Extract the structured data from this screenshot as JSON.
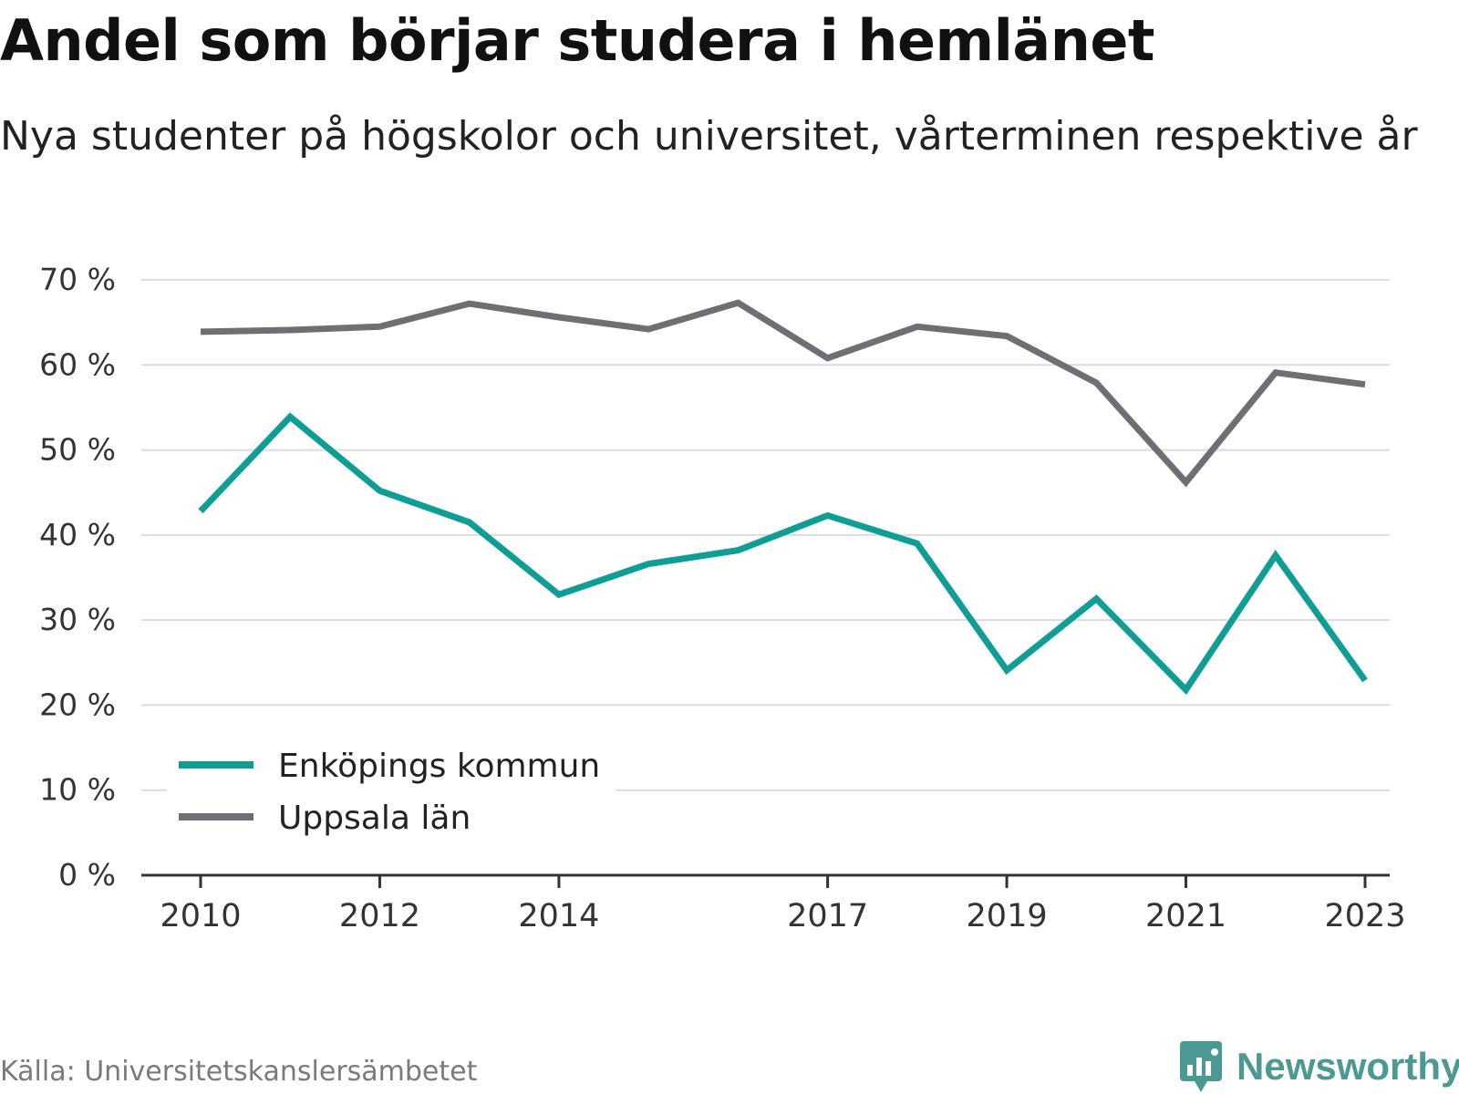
{
  "header": {
    "title": "Andel som börjar studera i hemlänet",
    "subtitle": "Nya studenter på högskolor och universitet, vårterminen respektive år"
  },
  "chart_data": {
    "type": "line",
    "title": "Andel som börjar studera i hemlänet",
    "subtitle": "Nya studenter på högskolor och universitet, vårterminen respektive år",
    "x": [
      2010,
      2011,
      2012,
      2013,
      2014,
      2015,
      2016,
      2017,
      2018,
      2019,
      2020,
      2021,
      2022,
      2023
    ],
    "x_tick_labels": [
      "2010",
      "2012",
      "2014",
      "2017",
      "2019",
      "2021",
      "2023"
    ],
    "y_tick_labels": [
      "0 %",
      "10 %",
      "20 %",
      "30 %",
      "40 %",
      "50 %",
      "60 %",
      "70 %"
    ],
    "ylim": [
      0,
      70
    ],
    "y_unit": "%",
    "grid": true,
    "legend_position": "bottom-left",
    "series": [
      {
        "name": "Enköpings kommun",
        "color": "#0f9e96",
        "values": [
          42.8,
          53.9,
          45.2,
          41.5,
          33.0,
          36.6,
          38.2,
          42.3,
          39.0,
          24.1,
          32.5,
          21.8,
          37.6,
          22.9
        ]
      },
      {
        "name": "Uppsala län",
        "color": "#6e6e74",
        "values": [
          63.9,
          64.1,
          64.5,
          67.2,
          65.6,
          64.2,
          67.3,
          60.8,
          64.5,
          63.4,
          57.9,
          46.2,
          59.1,
          57.7
        ]
      }
    ]
  },
  "footer": {
    "source": "Källa: Universitetskanslersämbetet",
    "brand": "Newsworthy",
    "brand_color": "#4a9a93"
  }
}
